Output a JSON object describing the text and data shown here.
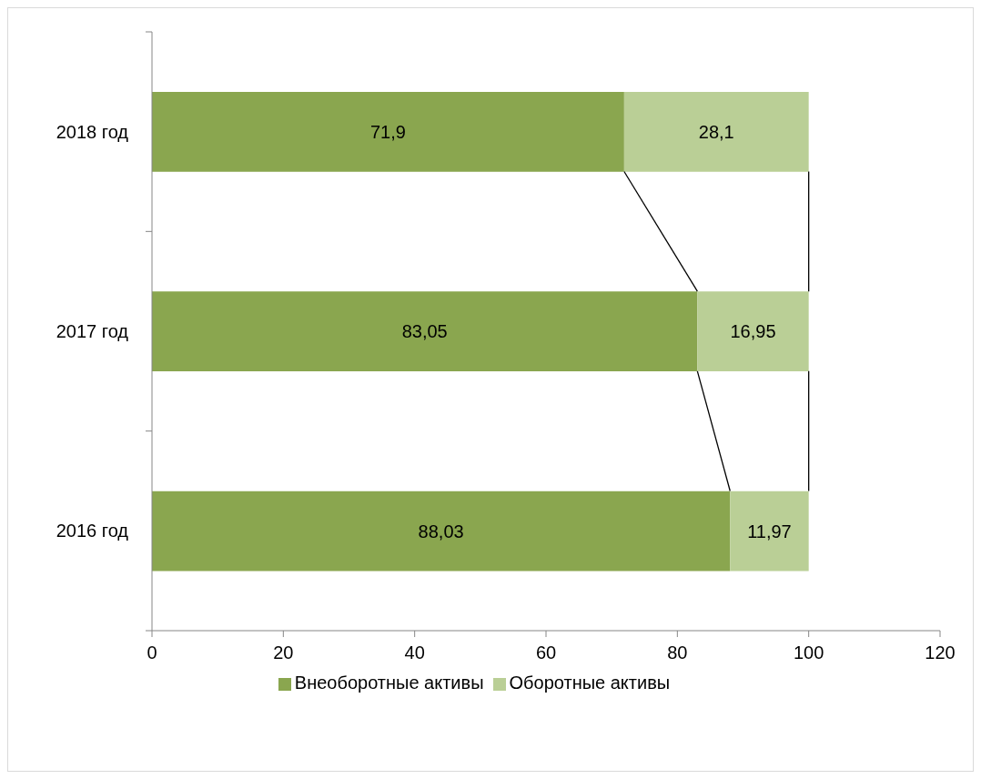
{
  "chart_data": {
    "type": "bar",
    "orientation": "horizontal",
    "stacked": true,
    "categories": [
      "2018 год",
      "2017 год",
      "2016 год"
    ],
    "series": [
      {
        "name": "Внеоборотные активы",
        "color": "#8aa64f",
        "values": [
          71.9,
          83.05,
          88.03
        ],
        "value_labels": [
          "71,9",
          "83,05",
          "88,03"
        ]
      },
      {
        "name": "Оборотные активы",
        "color": "#bacf96",
        "values": [
          28.1,
          16.95,
          11.97
        ],
        "value_labels": [
          "28,1",
          "16,95",
          "11,97"
        ]
      }
    ],
    "xlim": [
      0,
      120
    ],
    "xticks": [
      0,
      20,
      40,
      60,
      80,
      100,
      120
    ],
    "legend": "bottom"
  }
}
